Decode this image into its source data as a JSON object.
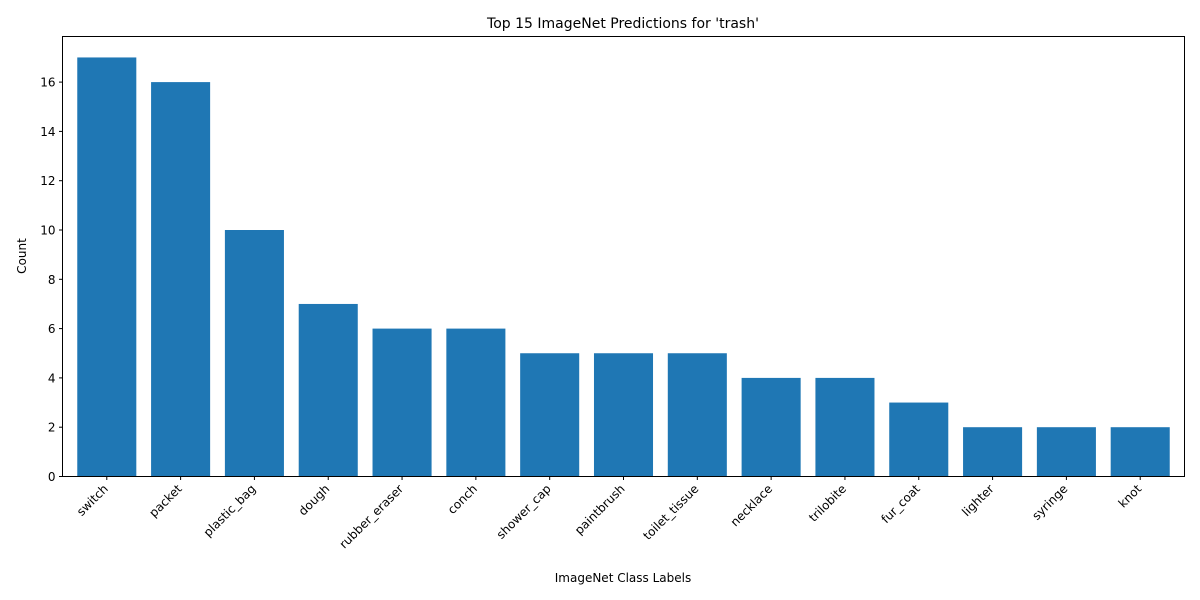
{
  "chart_data": {
    "type": "bar",
    "title": "Top 15 ImageNet Predictions for 'trash'",
    "xlabel": "ImageNet Class Labels",
    "ylabel": "Count",
    "categories": [
      "switch",
      "packet",
      "plastic_bag",
      "dough",
      "rubber_eraser",
      "conch",
      "shower_cap",
      "paintbrush",
      "toilet_tissue",
      "necklace",
      "trilobite",
      "fur_coat",
      "lighter",
      "syringe",
      "knot"
    ],
    "values": [
      17,
      16,
      10,
      7,
      6,
      6,
      5,
      5,
      5,
      4,
      4,
      3,
      2,
      2,
      2
    ],
    "ylim": [
      0,
      17.85
    ],
    "yticks": [
      0,
      2,
      4,
      6,
      8,
      10,
      12,
      14,
      16
    ],
    "bar_color": "#1f77b4",
    "grid": false,
    "legend": "none"
  }
}
